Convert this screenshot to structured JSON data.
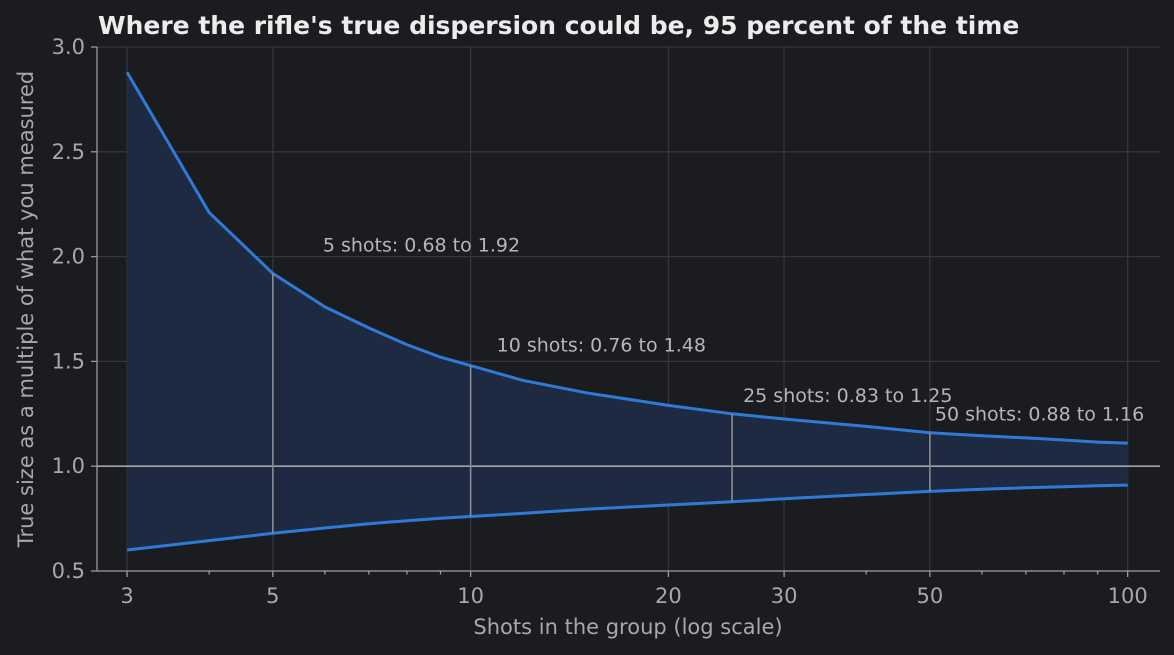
{
  "chart_data": {
    "type": "area",
    "title": "Where the rifle's true dispersion could be, 95 percent of the time",
    "xlabel": "Shots in the group (log scale)",
    "ylabel": "True size as a multiple of what you measured",
    "x_scale": "log",
    "xlim": [
      2.7,
      112
    ],
    "ylim": [
      0.5,
      3.0
    ],
    "x_ticks": [
      3,
      5,
      10,
      20,
      30,
      50,
      100
    ],
    "x_tick_labels": [
      "3",
      "5",
      "10",
      "20",
      "30",
      "50",
      "100"
    ],
    "y_ticks": [
      0.5,
      1.0,
      1.5,
      2.0,
      2.5,
      3.0
    ],
    "y_tick_labels": [
      "0.5",
      "1.0",
      "1.5",
      "2.0",
      "2.5",
      "3.0"
    ],
    "grid": true,
    "reference_line_y": 1.0,
    "x": [
      3,
      4,
      5,
      6,
      7,
      8,
      9,
      10,
      12,
      15,
      20,
      25,
      30,
      40,
      50,
      60,
      70,
      80,
      90,
      100
    ],
    "series": [
      {
        "role": "upper",
        "values": [
          2.88,
          2.21,
          1.92,
          1.76,
          1.66,
          1.58,
          1.52,
          1.48,
          1.41,
          1.35,
          1.29,
          1.25,
          1.225,
          1.19,
          1.16,
          1.145,
          1.135,
          1.125,
          1.115,
          1.11
        ]
      },
      {
        "role": "lower",
        "values": [
          0.6,
          0.645,
          0.68,
          0.705,
          0.725,
          0.74,
          0.752,
          0.76,
          0.775,
          0.795,
          0.815,
          0.83,
          0.845,
          0.865,
          0.88,
          0.89,
          0.897,
          0.902,
          0.907,
          0.91
        ]
      }
    ],
    "annotations": [
      {
        "x": 5,
        "lower": 0.68,
        "upper": 1.92,
        "label": "5 shots: 0.68 to 1.92"
      },
      {
        "x": 10,
        "lower": 0.76,
        "upper": 1.48,
        "label": "10 shots: 0.76 to 1.48"
      },
      {
        "x": 25,
        "lower": 0.83,
        "upper": 1.25,
        "label": "25 shots: 0.83 to 1.25"
      },
      {
        "x": 50,
        "lower": 0.88,
        "upper": 1.16,
        "label": "50 shots: 0.88 to 1.16"
      }
    ],
    "colors": {
      "background": "#1b1c20",
      "line": "#2f7ad6",
      "band": "#1d2a42",
      "grid": "#34363c",
      "text": "#a7a8ad"
    }
  }
}
